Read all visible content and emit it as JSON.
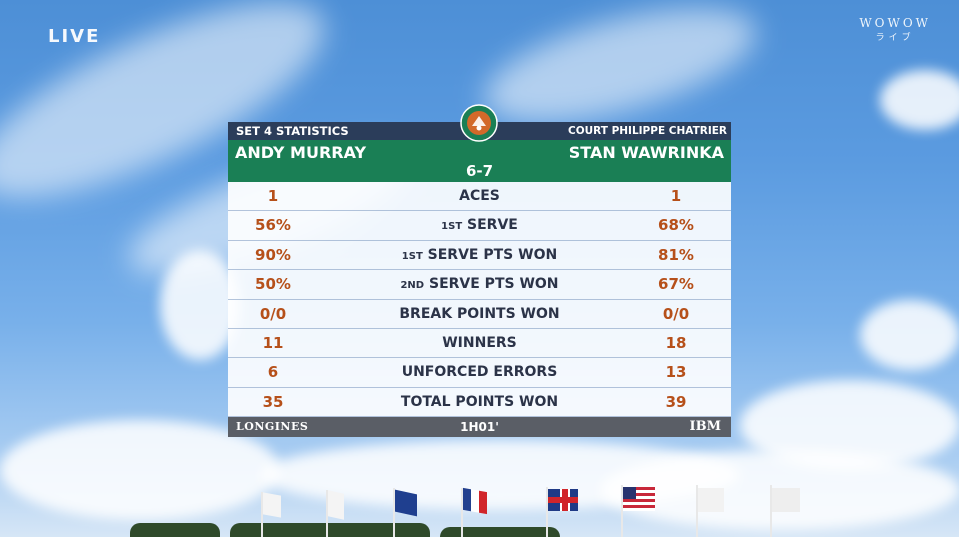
{
  "overlay": {
    "live": "LIVE",
    "broadcaster": "WOWOW",
    "broadcaster_sub": "ライブ"
  },
  "board": {
    "set_title": "SET 4 STATISTICS",
    "court": "COURT PHILIPPE CHATRIER",
    "player1": "ANDY MURRAY",
    "player2": "STAN WAWRINKA",
    "score": "6-7",
    "rows": [
      {
        "p1": "1",
        "label": "ACES",
        "p2": "1"
      },
      {
        "p1": "56%",
        "label_sup": "1ST",
        "label": "SERVE",
        "p2": "68%"
      },
      {
        "p1": "90%",
        "label_sup": "1ST",
        "label": "SERVE PTS WON",
        "p2": "81%"
      },
      {
        "p1": "50%",
        "label_sup": "2ND",
        "label": "SERVE PTS WON",
        "p2": "67%"
      },
      {
        "p1": "0/0",
        "label": "BREAK POINTS WON",
        "p2": "0/0"
      },
      {
        "p1": "11",
        "label": "WINNERS",
        "p2": "18"
      },
      {
        "p1": "6",
        "label": "UNFORCED ERRORS",
        "p2": "13"
      },
      {
        "p1": "35",
        "label": "TOTAL POINTS WON",
        "p2": "39"
      }
    ],
    "footer": {
      "sponsor_left": "LONGINES",
      "duration": "1H01'",
      "sponsor_right": "IBM"
    }
  },
  "colors": {
    "header_dark": "#2b3d5a",
    "header_green": "#1a7f55",
    "stat_value": "#b6501a",
    "footer": "#5a5e66"
  },
  "icons": {
    "logo": "roland-garros-logo",
    "flags": [
      "white-flag",
      "white-flag",
      "australia-flag",
      "france-flag",
      "uk-flag",
      "usa-flag",
      "white-flag",
      "white-flag"
    ]
  }
}
